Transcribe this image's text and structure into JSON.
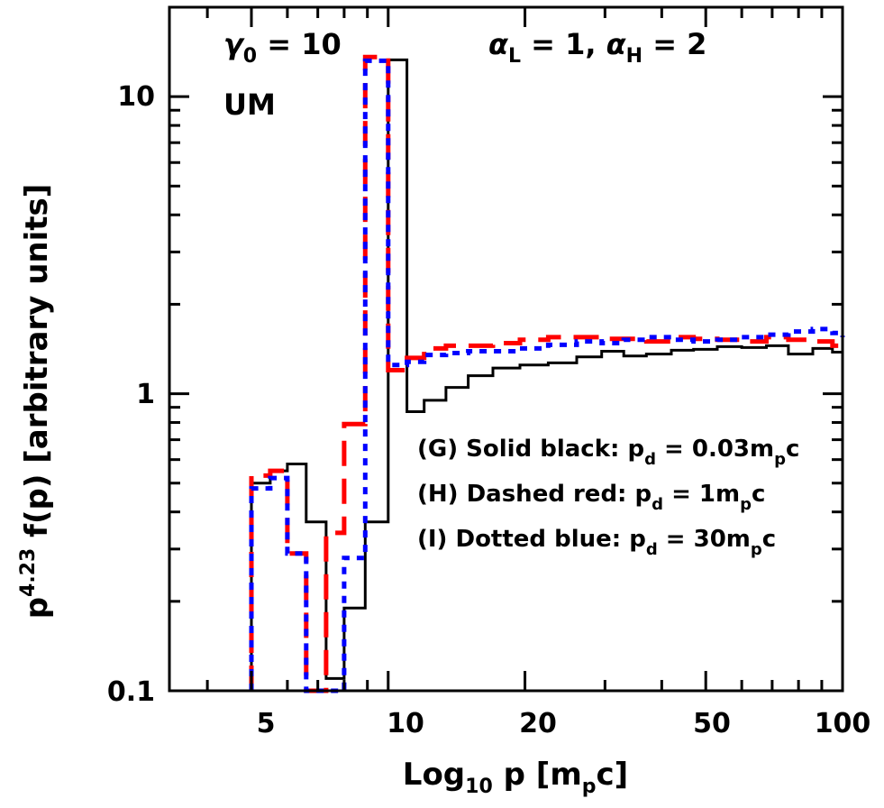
{
  "chart_data": {
    "type": "line",
    "style": "step-histogram",
    "x_scale": "log",
    "y_scale": "log",
    "xlim": [
      3.3,
      100
    ],
    "ylim": [
      0.1,
      20
    ],
    "x_tick_labels": [
      {
        "value": 5,
        "label": "5"
      },
      {
        "value": 10,
        "label": "10"
      },
      {
        "value": 20,
        "label": "20"
      },
      {
        "value": 50,
        "label": "50"
      },
      {
        "value": 100,
        "label": "100"
      }
    ],
    "y_tick_labels": [
      {
        "value": 0.1,
        "label": "0.1"
      },
      {
        "value": 1,
        "label": "1"
      },
      {
        "value": 10,
        "label": "10"
      }
    ],
    "xlabel": {
      "main": "Log",
      "sub1": "10",
      "mid": " p [m",
      "sub2": "p",
      "end": "c]"
    },
    "ylabel": {
      "pre": "p",
      "sup": "4.23",
      "post": " f(p) [arbitrary units]"
    },
    "annotations": {
      "gamma": {
        "sym": "γ",
        "sub": "0",
        "text": " = 10"
      },
      "model": "UM",
      "alpha": {
        "a1": "α",
        "s1": "L",
        "t1": " = 1, ",
        "a2": "α",
        "s2": "H",
        "t2": " = 2"
      }
    },
    "legend_placement": "lower-right",
    "series": [
      {
        "name": "(G) Solid black: p_d = 0.03m_pc",
        "legend": {
          "pre": "(G) Solid black: p",
          "sub": "d",
          "mid": " = 0.03m",
          "sub2": "p",
          "end": "c"
        },
        "color": "#000000",
        "dash": "",
        "x": [
          5.0,
          5.5,
          6.0,
          6.6,
          7.3,
          8.0,
          8.9,
          10.0,
          11.0,
          12.0,
          13.4,
          15.0,
          17.0,
          19.5,
          22.5,
          26.0,
          29.5,
          33.0,
          37.0,
          42.0,
          47.0,
          53.0,
          60.0,
          68.0,
          76.0,
          86.0,
          95.0
        ],
        "y": [
          0.5,
          0.55,
          0.58,
          0.37,
          0.11,
          0.19,
          0.37,
          13.3,
          0.87,
          0.95,
          1.05,
          1.15,
          1.22,
          1.25,
          1.27,
          1.33,
          1.39,
          1.34,
          1.36,
          1.4,
          1.41,
          1.44,
          1.43,
          1.45,
          1.36,
          1.42,
          1.38
        ],
        "x_end": 100.0,
        "y_end": 1.28
      },
      {
        "name": "(H) Dashed red: p_d = 1m_pc",
        "legend": {
          "pre": "(H) Dashed red: p",
          "sub": "d",
          "mid": " = 1m",
          "sub2": "p",
          "end": "c"
        },
        "color": "#ff0000",
        "dash": "28,14",
        "x": [
          5.0,
          5.5,
          6.0,
          6.6,
          7.3,
          8.0,
          8.9,
          10.0,
          11.0,
          12.0,
          13.4,
          15.0,
          17.0,
          19.5,
          22.5,
          26.0,
          29.5,
          33.0,
          37.0,
          42.0,
          47.0,
          53.0,
          60.0,
          68.0,
          76.0,
          86.0,
          95.0
        ],
        "y": [
          0.53,
          0.55,
          0.29,
          0.1,
          0.34,
          0.79,
          13.6,
          1.2,
          1.32,
          1.42,
          1.45,
          1.45,
          1.48,
          1.52,
          1.55,
          1.55,
          1.53,
          1.53,
          1.5,
          1.55,
          1.53,
          1.52,
          1.5,
          1.55,
          1.52,
          1.5,
          1.45
        ],
        "x_end": 100.0,
        "y_end": 1.45
      },
      {
        "name": "(I) Dotted blue: p_d = 30m_pc",
        "legend": {
          "pre": "(I) Dotted blue: p",
          "sub": "d",
          "mid": " = 30m",
          "sub2": "p",
          "end": "c"
        },
        "color": "#0000ff",
        "dash": "8,8",
        "x": [
          5.0,
          5.5,
          6.0,
          6.6,
          7.3,
          8.0,
          8.9,
          10.0,
          11.0,
          12.0,
          13.4,
          15.0,
          17.0,
          19.5,
          22.5,
          26.0,
          29.5,
          33.0,
          37.0,
          42.0,
          47.0,
          53.0,
          60.0,
          68.0,
          76.0,
          86.0,
          95.0
        ],
        "y": [
          0.48,
          0.52,
          0.29,
          0.1,
          0.1,
          0.28,
          13.2,
          1.25,
          1.28,
          1.35,
          1.37,
          1.39,
          1.39,
          1.42,
          1.46,
          1.5,
          1.48,
          1.52,
          1.55,
          1.52,
          1.5,
          1.52,
          1.55,
          1.58,
          1.62,
          1.65,
          1.6
        ],
        "x_end": 100.0,
        "y_end": 1.55
      }
    ]
  }
}
